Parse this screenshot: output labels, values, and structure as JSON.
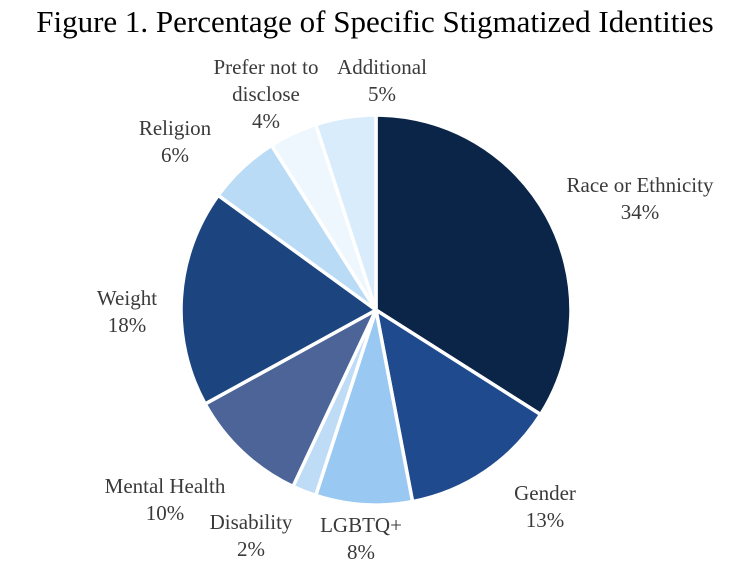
{
  "chart_data": {
    "type": "pie",
    "title": "Figure 1. Percentage of Specific Stigmatized Identities",
    "start": "12 o'clock",
    "direction": "clockwise",
    "slices": [
      {
        "label": "Race or Ethnicity",
        "value": 34,
        "value_label": "34%",
        "color": "#0b2549"
      },
      {
        "label": "Gender",
        "value": 13,
        "value_label": "13%",
        "color": "#204a8e"
      },
      {
        "label": "LGBTQ+",
        "value": 8,
        "value_label": "8%",
        "color": "#99c9f3"
      },
      {
        "label": "Disability",
        "value": 2,
        "value_label": "2%",
        "color": "#bfdcf6"
      },
      {
        "label": "Mental Health",
        "value": 10,
        "value_label": "10%",
        "color": "#4c6497"
      },
      {
        "label": "Weight",
        "value": 18,
        "value_label": "18%",
        "color": "#1c4580"
      },
      {
        "label": "Religion",
        "value": 6,
        "value_label": "6%",
        "color": "#b9dbf5"
      },
      {
        "label": "Prefer not to disclose",
        "label_lines": [
          "Prefer not to",
          "disclose"
        ],
        "value": 4,
        "value_label": "4%",
        "color": "#eef7fd"
      },
      {
        "label": "Additional",
        "value": 5,
        "value_label": "5%",
        "color": "#d9ecfb"
      }
    ]
  }
}
